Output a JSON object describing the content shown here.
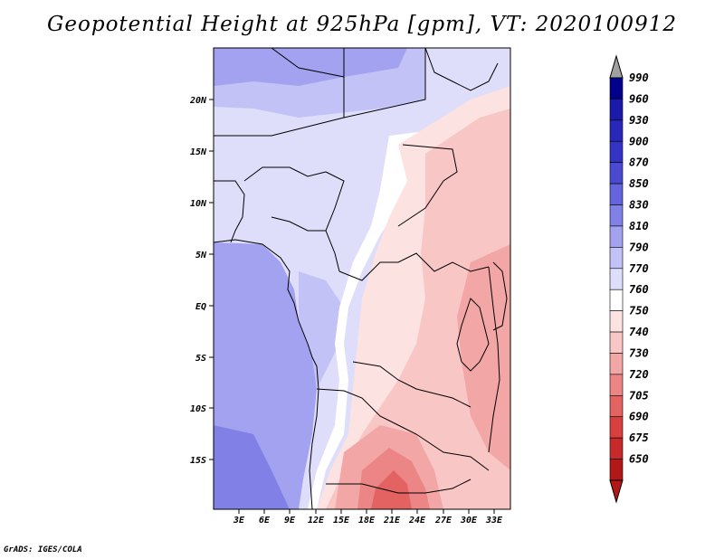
{
  "title": "Geopotential Height at 925hPa [gpm], VT: 2020100912",
  "footer": "GrADS: IGES/COLA",
  "map": {
    "lat_labels": [
      "20N",
      "15N",
      "10N",
      "5N",
      "EQ",
      "5S",
      "10S",
      "15S"
    ],
    "lon_labels": [
      "3E",
      "6E",
      "9E",
      "12E",
      "15E",
      "18E",
      "21E",
      "24E",
      "27E",
      "30E",
      "33E"
    ]
  },
  "colorbar": {
    "levels": [
      "990",
      "960",
      "930",
      "900",
      "870",
      "850",
      "830",
      "810",
      "790",
      "770",
      "760",
      "750",
      "740",
      "730",
      "720",
      "705",
      "690",
      "675",
      "650"
    ],
    "colors": [
      "#00008b",
      "#1a1aa8",
      "#2727b8",
      "#3434c4",
      "#4a4ad0",
      "#6464dc",
      "#8080e6",
      "#a2a2f0",
      "#c2c2f6",
      "#dedefb",
      "#ffffff",
      "#fde2e2",
      "#f9c6c6",
      "#f3a6a6",
      "#ec8585",
      "#e36262",
      "#d84040",
      "#c62a2a",
      "#b21818"
    ]
  }
}
